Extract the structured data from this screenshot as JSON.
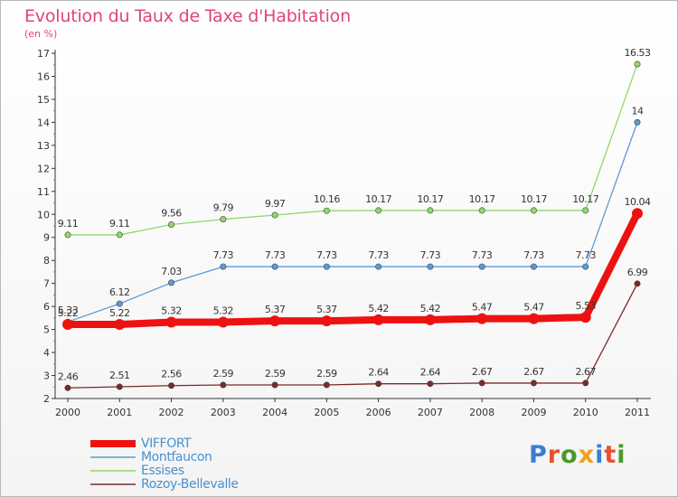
{
  "header": {
    "title": "Evolution du Taux de Taxe d'Habitation",
    "subtitle": "(en %)"
  },
  "logo": {
    "text": "Proxiti",
    "colors": [
      "#3a7fd0",
      "#e7502a",
      "#4a9a2a",
      "#f0a020",
      "#3a7fd0",
      "#e7502a",
      "#4a9a2a"
    ]
  },
  "chart_data": {
    "type": "line",
    "title": "Evolution du Taux de Taxe d'Habitation",
    "subtitle": "(en %)",
    "xlabel": "",
    "ylabel": "",
    "x": [
      "2000",
      "2001",
      "2002",
      "2003",
      "2004",
      "2005",
      "2006",
      "2007",
      "2008",
      "2009",
      "2010",
      "2011"
    ],
    "ylim": [
      2,
      17
    ],
    "yticks": [
      2,
      3,
      4,
      5,
      6,
      7,
      8,
      9,
      10,
      11,
      12,
      13,
      14,
      15,
      16,
      17
    ],
    "grid": false,
    "legend_position": "bottom-left",
    "series": [
      {
        "name": "VIFFORT",
        "color": "#ee1111",
        "values": [
          5.22,
          5.22,
          5.32,
          5.32,
          5.37,
          5.37,
          5.42,
          5.42,
          5.47,
          5.47,
          5.53,
          10.04
        ],
        "labels": [
          "5.22",
          "5.22",
          "5.32",
          "5.32",
          "5.37",
          "5.37",
          "5.42",
          "5.42",
          "5.47",
          "5.47",
          "5.53",
          "10.04"
        ],
        "thick": true
      },
      {
        "name": "Montfaucon",
        "color": "#5b9bd5",
        "values": [
          5.33,
          6.12,
          7.03,
          7.73,
          7.73,
          7.73,
          7.73,
          7.73,
          7.73,
          7.73,
          7.73,
          14
        ],
        "labels": [
          "5.33",
          "6.12",
          "7.03",
          "7.73",
          "7.73",
          "7.73",
          "7.73",
          "7.73",
          "7.73",
          "7.73",
          "7.73",
          "14"
        ]
      },
      {
        "name": "Essises",
        "color": "#8fd86a",
        "values": [
          9.11,
          9.11,
          9.56,
          9.79,
          9.97,
          10.16,
          10.17,
          10.17,
          10.17,
          10.17,
          10.17,
          16.53
        ],
        "labels": [
          "9.11",
          "9.11",
          "9.56",
          "9.79",
          "9.97",
          "10.16",
          "10.17",
          "10.17",
          "10.17",
          "10.17",
          "10.17",
          "16.53"
        ]
      },
      {
        "name": "Rozoy-Bellevalle",
        "color": "#7a2a2a",
        "values": [
          2.46,
          2.51,
          2.56,
          2.59,
          2.59,
          2.59,
          2.64,
          2.64,
          2.67,
          2.67,
          2.67,
          6.99
        ],
        "labels": [
          "2.46",
          "2.51",
          "2.56",
          "2.59",
          "2.59",
          "2.59",
          "2.64",
          "2.64",
          "2.67",
          "2.67",
          "2.67",
          "6.99"
        ]
      }
    ]
  }
}
